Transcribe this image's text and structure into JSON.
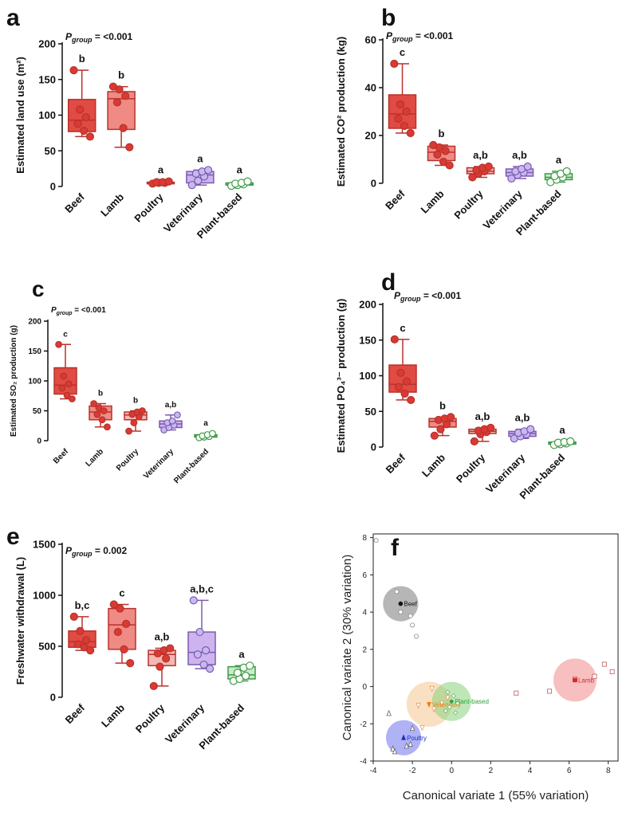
{
  "colors": {
    "beef": "#e04b43",
    "lamb": "#ef8a84",
    "poultry": "#f2b8b4",
    "veterinary": "#cdb4ee",
    "plant": "#c7ecc8",
    "stroke_red": "#b8322c",
    "stroke_purple": "#7a5cb0",
    "stroke_green": "#3e9a45",
    "dot_red": "#d93a33",
    "dot_purple": "#c9b8f0",
    "dot_green": "#ffffff"
  },
  "groups": [
    "Beef",
    "Lamb",
    "Poultry",
    "Veterinary",
    "Plant-based"
  ],
  "chart_data": [
    {
      "type": "box",
      "panel": "a",
      "p_label": "P",
      "p_sub": "group",
      "p_value": " = <0.001",
      "ylabel": "Estimated land use (m²)",
      "ylim": [
        0,
        200
      ],
      "yticks": [
        0,
        50,
        100,
        150,
        200
      ],
      "categories": [
        "Beef",
        "Lamb",
        "Poultry",
        "Veterinary",
        "Plant-based"
      ],
      "boxes": [
        {
          "min": 70,
          "q1": 77,
          "median": 93,
          "q3": 122,
          "max": 163,
          "letter": "b",
          "points": [
            163,
            108,
            97,
            88,
            78,
            70
          ]
        },
        {
          "min": 55,
          "q1": 80,
          "median": 123,
          "q3": 133,
          "max": 140,
          "letter": "b",
          "points": [
            140,
            136,
            127,
            118,
            82,
            55
          ]
        },
        {
          "min": 4,
          "q1": 4,
          "median": 5,
          "q3": 6,
          "max": 7,
          "letter": "a",
          "points": [
            4,
            5,
            5,
            6,
            6,
            7
          ]
        },
        {
          "min": 2,
          "q1": 5,
          "median": 16,
          "q3": 21,
          "max": 23,
          "letter": "a",
          "points": [
            2,
            8,
            14,
            18,
            21,
            23
          ]
        },
        {
          "min": 1,
          "q1": 2,
          "median": 3,
          "q3": 5,
          "max": 7,
          "letter": "a",
          "points": [
            1,
            2,
            3,
            4,
            5,
            7
          ]
        }
      ]
    },
    {
      "type": "box",
      "panel": "b",
      "p_label": "P",
      "p_sub": "group",
      "p_value": " = <0.001",
      "ylabel": "Estimated CO² production (kg)",
      "ylim": [
        0,
        60
      ],
      "yticks": [
        0,
        20,
        40,
        60
      ],
      "categories": [
        "Beef",
        "Lamb",
        "Poultry",
        "Veterinary",
        "Plant-based"
      ],
      "boxes": [
        {
          "min": 21,
          "q1": 23,
          "median": 29,
          "q3": 37,
          "max": 50,
          "letter": "c",
          "points": [
            50,
            33,
            30,
            27,
            24,
            21
          ]
        },
        {
          "min": 7.5,
          "q1": 9.5,
          "median": 13,
          "q3": 15.5,
          "max": 16,
          "letter": "b",
          "points": [
            16,
            15,
            13.5,
            12,
            9,
            7.5
          ]
        },
        {
          "min": 2.5,
          "q1": 4,
          "median": 5,
          "q3": 6.5,
          "max": 7,
          "letter": "a,b",
          "points": [
            2.5,
            4,
            5,
            5.5,
            6.5,
            7
          ]
        },
        {
          "min": 2,
          "q1": 3,
          "median": 4.5,
          "q3": 6,
          "max": 7,
          "letter": "a,b",
          "points": [
            2,
            3.5,
            4.5,
            5,
            6,
            7
          ]
        },
        {
          "min": 0.5,
          "q1": 1.5,
          "median": 2.5,
          "q3": 4,
          "max": 5,
          "letter": "a",
          "points": [
            0.5,
            1.5,
            2.5,
            3,
            4,
            5
          ]
        }
      ]
    },
    {
      "type": "box",
      "panel": "c",
      "p_label": "P",
      "p_sub": "group",
      "p_value": " = <0.001",
      "ylabel": "Estimated SO₂ production (g)",
      "ylim": [
        0,
        200
      ],
      "yticks": [
        0,
        50,
        100,
        150,
        200
      ],
      "categories": [
        "Beef",
        "Lamb",
        "Poultry",
        "Veterinary",
        "Plant-based"
      ],
      "boxes": [
        {
          "min": 70,
          "q1": 78,
          "median": 93,
          "q3": 122,
          "max": 161,
          "letter": "c",
          "points": [
            161,
            108,
            95,
            88,
            76,
            70
          ]
        },
        {
          "min": 23,
          "q1": 35,
          "median": 48,
          "q3": 58,
          "max": 62,
          "letter": "b",
          "points": [
            62,
            55,
            50,
            44,
            35,
            23
          ]
        },
        {
          "min": 16,
          "q1": 35,
          "median": 43,
          "q3": 48,
          "max": 50,
          "letter": "b",
          "points": [
            16,
            30,
            40,
            44,
            48,
            50
          ]
        },
        {
          "min": 18,
          "q1": 22,
          "median": 28,
          "q3": 33,
          "max": 43,
          "letter": "a,b",
          "points": [
            18,
            22,
            26,
            30,
            33,
            43
          ]
        },
        {
          "min": 5,
          "q1": 6,
          "median": 8,
          "q3": 10,
          "max": 12,
          "letter": "a",
          "points": [
            5,
            6,
            7,
            8,
            10,
            12
          ]
        }
      ]
    },
    {
      "type": "box",
      "panel": "d",
      "p_label": "P",
      "p_sub": "group",
      "p_value": " = <0.001",
      "ylabel": "Estimated PO₄³⁻ production (g)",
      "ylim": [
        0,
        200
      ],
      "yticks": [
        0,
        50,
        100,
        150,
        200
      ],
      "categories": [
        "Beef",
        "Lamb",
        "Poultry",
        "Veterinary",
        "Plant-based"
      ],
      "boxes": [
        {
          "min": 66,
          "q1": 77,
          "median": 88,
          "q3": 115,
          "max": 151,
          "letter": "c",
          "points": [
            151,
            104,
            92,
            84,
            75,
            66
          ]
        },
        {
          "min": 16,
          "q1": 28,
          "median": 36,
          "q3": 40,
          "max": 42,
          "letter": "b",
          "points": [
            16,
            25,
            32,
            38,
            40,
            42
          ]
        },
        {
          "min": 8,
          "q1": 19,
          "median": 22,
          "q3": 25,
          "max": 27,
          "letter": "a,b",
          "points": [
            8,
            18,
            21,
            23,
            25,
            27
          ]
        },
        {
          "min": 12,
          "q1": 15,
          "median": 19,
          "q3": 22,
          "max": 25,
          "letter": "a,b",
          "points": [
            12,
            15,
            18,
            20,
            22,
            25
          ]
        },
        {
          "min": 3,
          "q1": 4,
          "median": 6,
          "q3": 7,
          "max": 8,
          "letter": "a",
          "points": [
            3,
            4,
            5,
            6,
            7,
            8
          ]
        }
      ]
    },
    {
      "type": "box",
      "panel": "e",
      "p_label": "P",
      "p_sub": "group",
      "p_value": " = 0.002",
      "ylabel": "Freshwater withdrawal (L)",
      "ylim": [
        0,
        1500
      ],
      "yticks": [
        0,
        500,
        1000,
        1500
      ],
      "categories": [
        "Beef",
        "Lamb",
        "Poultry",
        "Veterinary",
        "Plant-based"
      ],
      "boxes": [
        {
          "min": 460,
          "q1": 490,
          "median": 545,
          "q3": 650,
          "max": 790,
          "letter": "b,c",
          "points": [
            790,
            650,
            560,
            520,
            490,
            460
          ]
        },
        {
          "min": 335,
          "q1": 470,
          "median": 710,
          "q3": 870,
          "max": 910,
          "letter": "c",
          "points": [
            910,
            870,
            720,
            640,
            470,
            335
          ]
        },
        {
          "min": 110,
          "q1": 310,
          "median": 420,
          "q3": 460,
          "max": 480,
          "letter": "a,b",
          "points": [
            110,
            300,
            380,
            430,
            460,
            480
          ]
        },
        {
          "min": 280,
          "q1": 320,
          "median": 440,
          "q3": 640,
          "max": 950,
          "letter": "a,b,c",
          "points": [
            950,
            640,
            460,
            420,
            320,
            280
          ]
        },
        {
          "min": 160,
          "q1": 180,
          "median": 220,
          "q3": 300,
          "max": 310,
          "letter": "a",
          "points": [
            160,
            180,
            210,
            240,
            290,
            310
          ]
        }
      ]
    },
    {
      "type": "scatter",
      "panel": "f",
      "xlabel": "Canonical variate 1 (55% variation)",
      "ylabel": "Canonical variate 2  (30% variation)",
      "xlim": [
        -4,
        8.5
      ],
      "ylim": [
        -4,
        8.2
      ],
      "xticks": [
        -4,
        -2,
        0,
        2,
        4,
        6,
        8
      ],
      "yticks": [
        -4,
        -2,
        0,
        2,
        4,
        6,
        8
      ],
      "groups": [
        {
          "name": "Beef",
          "color": "#111111",
          "circle": "#7a7a7a",
          "marker": "circle",
          "center": [
            -2.6,
            4.45
          ],
          "radius": 0.9,
          "points": [
            [
              -3.85,
              7.85
            ],
            [
              -2.8,
              5.1
            ],
            [
              -2.6,
              4.0
            ],
            [
              -2.1,
              3.8
            ],
            [
              -2.0,
              3.3
            ],
            [
              -1.8,
              2.7
            ]
          ]
        },
        {
          "name": "Lamb",
          "color": "#d42a2a",
          "circle": "#f08a8a",
          "marker": "square",
          "center": [
            6.3,
            0.35
          ],
          "radius": 1.1,
          "points": [
            [
              3.3,
              -0.35
            ],
            [
              5.0,
              -0.25
            ],
            [
              7.3,
              0.55
            ],
            [
              7.8,
              1.2
            ],
            [
              8.2,
              0.8
            ],
            [
              6.3,
              0.4
            ]
          ]
        },
        {
          "name": "Poultry",
          "color": "#1f2ec0",
          "circle": "#6f73ee",
          "marker": "triangle",
          "center": [
            -2.45,
            -2.75
          ],
          "radius": 0.9,
          "points": [
            [
              -3.2,
              -1.45
            ],
            [
              -3.0,
              -3.35
            ],
            [
              -2.9,
              -3.5
            ],
            [
              -2.3,
              -3.2
            ],
            [
              -2.1,
              -3.1
            ],
            [
              -2.0,
              -2.25
            ]
          ]
        },
        {
          "name": "Veterinary",
          "color": "#f07f1a",
          "circle": "#f6c690",
          "marker": "triangle-down",
          "center": [
            -1.15,
            -0.95
          ],
          "radius": 1.15,
          "points": [
            [
              -1.0,
              -0.1
            ],
            [
              -1.5,
              -2.2
            ],
            [
              -0.9,
              -1.2
            ],
            [
              -0.5,
              -0.9
            ],
            [
              -0.2,
              -0.6
            ],
            [
              -1.7,
              -1.0
            ]
          ]
        },
        {
          "name": "Plant-based",
          "color": "#2ea43a",
          "circle": "#88d27c",
          "marker": "diamond",
          "center": [
            0.0,
            -0.8
          ],
          "radius": 1.0,
          "points": [
            [
              -0.2,
              -0.3
            ],
            [
              0.1,
              -0.5
            ],
            [
              -0.1,
              -1.1
            ],
            [
              0.3,
              -0.9
            ],
            [
              -0.3,
              -1.3
            ],
            [
              0.2,
              -1.4
            ]
          ]
        }
      ]
    }
  ]
}
